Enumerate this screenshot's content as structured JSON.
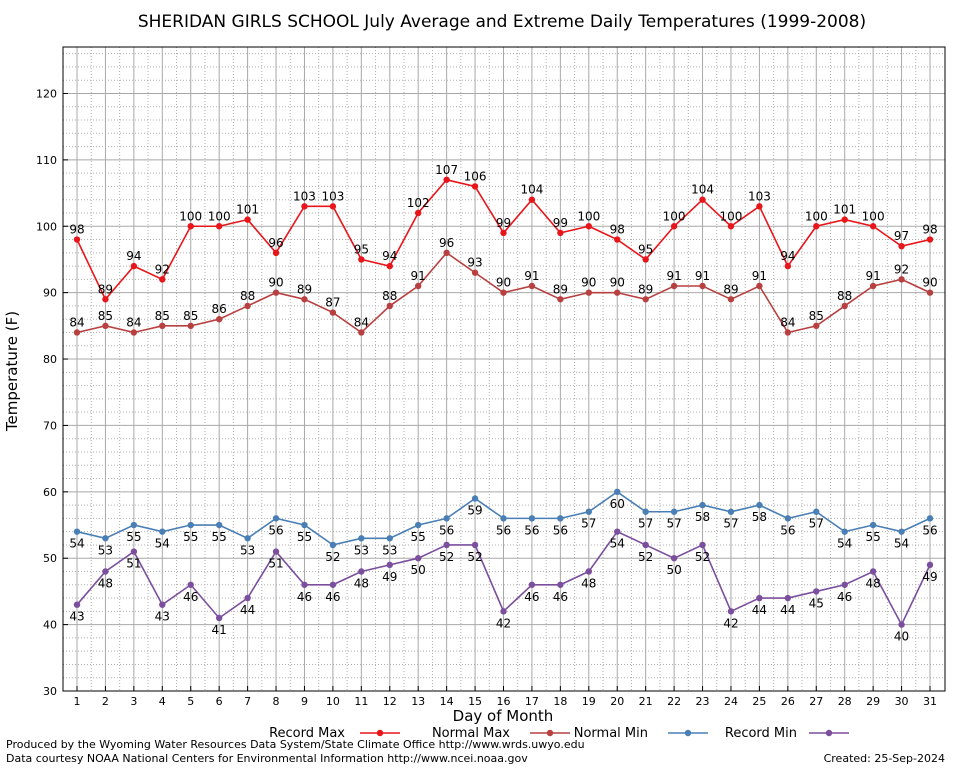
{
  "chart_data": {
    "type": "line",
    "title": "SHERIDAN GIRLS SCHOOL July Average and Extreme Daily Temperatures (1999-2008)",
    "xlabel": "Day of Month",
    "ylabel": "Temperature (F)",
    "ylim": [
      30,
      127
    ],
    "yticks": [
      30,
      40,
      50,
      60,
      70,
      80,
      90,
      100,
      110,
      120
    ],
    "categories": [
      "1",
      "2",
      "3",
      "4",
      "5",
      "6",
      "7",
      "8",
      "9",
      "10",
      "11",
      "12",
      "13",
      "14",
      "15",
      "16",
      "17",
      "18",
      "19",
      "20",
      "21",
      "22",
      "23",
      "24",
      "25",
      "26",
      "27",
      "28",
      "29",
      "30",
      "31"
    ],
    "grid": true,
    "legend_position": "bottom",
    "series": [
      {
        "name": "Record Max",
        "color": "#e8151b",
        "label_pos": "above",
        "values": [
          98,
          89,
          94,
          92,
          100,
          100,
          101,
          96,
          103,
          103,
          95,
          94,
          102,
          107,
          106,
          99,
          104,
          99,
          100,
          98,
          95,
          100,
          104,
          100,
          103,
          94,
          100,
          101,
          100,
          97,
          98
        ]
      },
      {
        "name": "Normal Max",
        "color": "#b84040",
        "label_pos": "above",
        "values": [
          84,
          85,
          84,
          85,
          85,
          86,
          88,
          90,
          89,
          87,
          84,
          88,
          91,
          96,
          93,
          90,
          91,
          89,
          90,
          90,
          89,
          91,
          91,
          89,
          91,
          84,
          85,
          88,
          91,
          92,
          90
        ]
      },
      {
        "name": "Normal Min",
        "color": "#4a7fb5",
        "label_pos": "below",
        "values": [
          54,
          53,
          55,
          54,
          55,
          55,
          53,
          56,
          55,
          52,
          53,
          53,
          55,
          56,
          59,
          56,
          56,
          56,
          57,
          60,
          57,
          57,
          58,
          57,
          58,
          56,
          57,
          54,
          55,
          54,
          56
        ]
      },
      {
        "name": "Record Min",
        "color": "#7b4f9d",
        "label_pos": "below",
        "values": [
          43,
          48,
          51,
          43,
          46,
          41,
          44,
          51,
          46,
          46,
          48,
          49,
          50,
          52,
          52,
          42,
          46,
          46,
          48,
          54,
          52,
          50,
          52,
          42,
          44,
          44,
          45,
          46,
          48,
          40,
          49
        ]
      }
    ]
  },
  "footer": {
    "produced_by": "Produced by the Wyoming Water Resources Data System/State Climate Office http://www.wrds.uwyo.edu",
    "courtesy": "Data courtesy NOAA National Centers for Environmental Information http://www.ncei.noaa.gov",
    "created": "Created: 25-Sep-2024"
  }
}
